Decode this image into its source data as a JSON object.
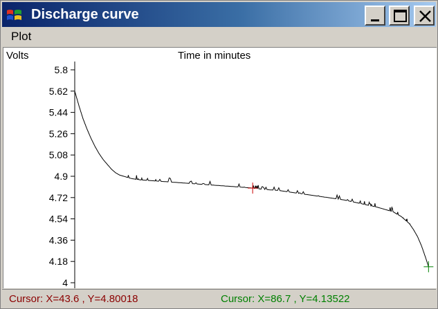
{
  "window": {
    "title": "Discharge curve",
    "controls": {
      "minimize": "minimize-icon",
      "maximize": "maximize-icon",
      "close": "close-icon"
    }
  },
  "menu": {
    "items": [
      {
        "label": "Plot"
      }
    ]
  },
  "colors": {
    "titlebar_start": "#0a246a",
    "titlebar_end": "#a6caf0",
    "curve": "#000000",
    "cursor1": "#cc0000",
    "cursor2": "#008000",
    "status_left": "#8b0000",
    "status_right": "#008000"
  },
  "chart_data": {
    "type": "line",
    "title": "",
    "xlabel": "Time in minutes",
    "ylabel": "Volts",
    "ylim": [
      4,
      5.8
    ],
    "xlim": [
      0,
      88
    ],
    "yticks": [
      "5.8",
      "5.62",
      "5.44",
      "5.26",
      "5.08",
      "4.9",
      "4.72",
      "4.54",
      "4.36",
      "4.18",
      "4"
    ],
    "series": [
      {
        "x": [
          0,
          1,
          2,
          3,
          4,
          5,
          6,
          7,
          8,
          9,
          10,
          11,
          12,
          14,
          16,
          18,
          20,
          24,
          28,
          32,
          36,
          40,
          43.6,
          46,
          50,
          54,
          58,
          62,
          66,
          70,
          72,
          74,
          76,
          78,
          80,
          81,
          82,
          83,
          84,
          85,
          86,
          86.7
        ],
        "y": [
          5.62,
          5.5,
          5.39,
          5.3,
          5.22,
          5.15,
          5.09,
          5.04,
          5.0,
          4.96,
          4.93,
          4.91,
          4.9,
          4.88,
          4.87,
          4.865,
          4.86,
          4.85,
          4.84,
          4.83,
          4.82,
          4.81,
          4.80018,
          4.79,
          4.78,
          4.76,
          4.74,
          4.72,
          4.7,
          4.67,
          4.655,
          4.64,
          4.62,
          4.6,
          4.56,
          4.53,
          4.5,
          4.45,
          4.39,
          4.31,
          4.21,
          4.13522
        ]
      }
    ],
    "cursors": [
      {
        "x": 43.6,
        "y": 4.80018
      },
      {
        "x": 86.7,
        "y": 4.13522
      }
    ]
  },
  "status": {
    "left": "Cursor: X=43.6 , Y=4.80018",
    "right": "Cursor: X=86.7 , Y=4.13522"
  }
}
